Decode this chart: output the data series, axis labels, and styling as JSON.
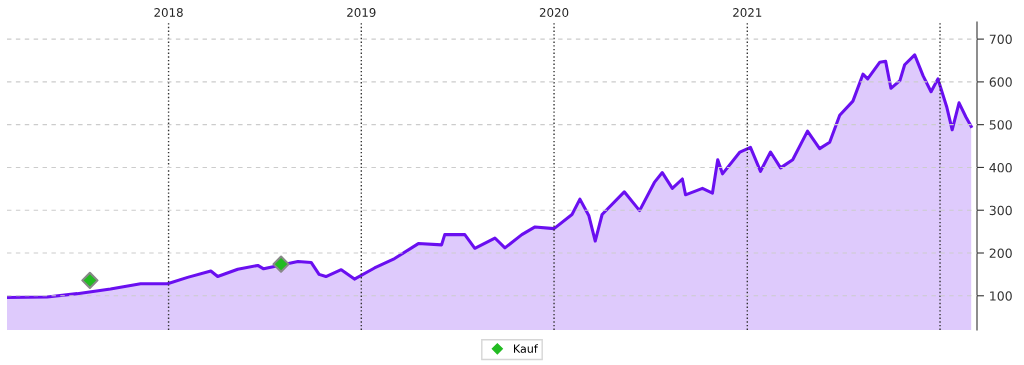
{
  "chart_data": {
    "type": "area",
    "xlim": [
      "2017-03-01",
      "2022-03-12"
    ],
    "ylim": [
      20,
      740
    ],
    "yticks": [
      100,
      200,
      300,
      400,
      500,
      600,
      700
    ],
    "xticks": [
      {
        "value": "2018-01-01",
        "label": "2018"
      },
      {
        "value": "2019-01-01",
        "label": "2019"
      },
      {
        "value": "2020-01-01",
        "label": "2020"
      },
      {
        "value": "2021-01-01",
        "label": "2021"
      },
      {
        "value": "2022-01-01",
        "label": null
      }
    ],
    "grid": true,
    "legend": "bottom",
    "x": [
      "2017-03-01",
      "2017-05-16",
      "2017-07-12",
      "2017-09-13",
      "2017-11-09",
      "2017-12-30",
      "2018-02-06",
      "2018-03-22",
      "2018-04-04",
      "2018-05-12",
      "2018-06-19",
      "2018-06-30",
      "2018-09-03",
      "2018-09-28",
      "2018-10-13",
      "2018-10-26",
      "2018-11-24",
      "2018-12-19",
      "2019-01-26",
      "2019-03-05",
      "2019-04-19",
      "2019-06-02",
      "2019-06-08",
      "2019-07-16",
      "2019-08-04",
      "2019-09-11",
      "2019-09-30",
      "2019-11-01",
      "2019-11-26",
      "2020-01-01",
      "2020-02-04",
      "2020-02-19",
      "2020-03-07",
      "2020-03-19",
      "2020-04-01",
      "2020-05-13",
      "2020-06-11",
      "2020-07-09",
      "2020-07-24",
      "2020-08-12",
      "2020-08-31",
      "2020-09-06",
      "2020-10-08",
      "2020-10-27",
      "2020-11-06",
      "2020-11-15",
      "2020-12-18",
      "2021-01-07",
      "2021-01-26",
      "2021-02-14",
      "2021-03-05",
      "2021-03-28",
      "2021-04-25",
      "2021-05-18",
      "2021-06-06",
      "2021-06-25",
      "2021-07-20",
      "2021-08-08",
      "2021-08-17",
      "2021-09-09",
      "2021-09-20",
      "2021-09-30",
      "2021-10-17",
      "2021-10-26",
      "2021-11-14",
      "2021-11-30",
      "2021-12-15",
      "2021-12-28",
      "2022-01-14",
      "2022-01-24",
      "2022-02-06",
      "2022-02-19",
      "2022-03-01"
    ],
    "series": [
      {
        "color": "#6a0ff0",
        "values": [
          96,
          97,
          105,
          116,
          128,
          128,
          143,
          158,
          145,
          162,
          171,
          163,
          180,
          178,
          150,
          145,
          161,
          139,
          165,
          187,
          222,
          219,
          243,
          243,
          211,
          235,
          212,
          243,
          261,
          257,
          290,
          326,
          287,
          228,
          290,
          343,
          299,
          365,
          388,
          351,
          373,
          336,
          351,
          340,
          418,
          385,
          436,
          447,
          391,
          436,
          399,
          418,
          485,
          444,
          459,
          522,
          555,
          618,
          607,
          646,
          648,
          585,
          603,
          640,
          663,
          614,
          577,
          607,
          540,
          488,
          551,
          518,
          496
        ]
      },
      {
        "type": "scatter",
        "name": "Kauf",
        "color": "#22bb22",
        "marker": "diamond",
        "x": [
          "2017-08-05",
          "2018-08-02"
        ],
        "values": [
          136,
          174
        ]
      }
    ]
  }
}
